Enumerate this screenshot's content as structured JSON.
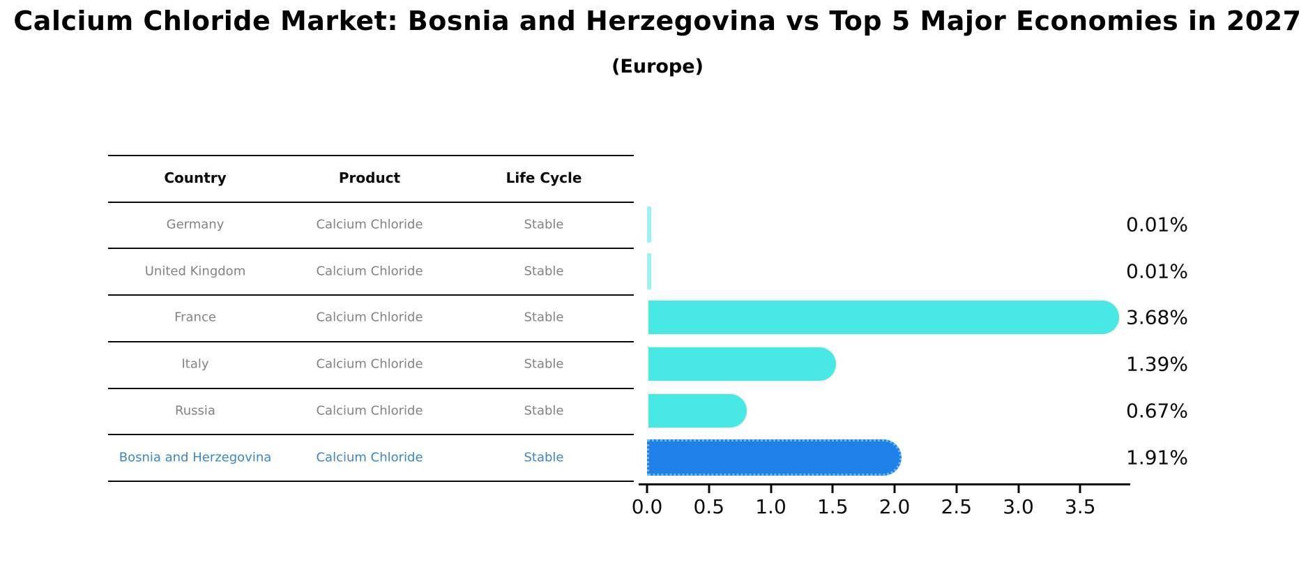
{
  "header": {
    "title": "Calcium Chloride Market: Bosnia and Herzegovina vs Top 5 Major Economies in 2027",
    "subtitle": "(Europe)"
  },
  "table": {
    "headers": [
      "Country",
      "Product",
      "Life Cycle"
    ],
    "rows": [
      {
        "country": "Germany",
        "product": "Calcium Chloride",
        "life_cycle": "Stable",
        "highlight": false
      },
      {
        "country": "United Kingdom",
        "product": "Calcium Chloride",
        "life_cycle": "Stable",
        "highlight": false
      },
      {
        "country": "France",
        "product": "Calcium Chloride",
        "life_cycle": "Stable",
        "highlight": false
      },
      {
        "country": "Italy",
        "product": "Calcium Chloride",
        "life_cycle": "Stable",
        "highlight": false
      },
      {
        "country": "Russia",
        "product": "Calcium Chloride",
        "life_cycle": "Stable",
        "highlight": true
      }
    ]
  },
  "chart_data": {
    "type": "bar",
    "orientation": "horizontal",
    "title": "Calcium Chloride Market: Bosnia and Herzegovina vs Top 5 Major Economies in 2027",
    "subtitle": "(Europe)",
    "categories": [
      "Germany",
      "United Kingdom",
      "France",
      "Italy",
      "Russia",
      "Bosnia and Herzegovina"
    ],
    "values": [
      0.01,
      0.01,
      3.68,
      1.39,
      0.67,
      1.91
    ],
    "value_labels": [
      "0.01%",
      "0.01%",
      "3.68%",
      "1.39%",
      "0.67%",
      "1.91%"
    ],
    "highlight_category": "Bosnia and Herzegovina",
    "x_ticks": [
      "0.0",
      "0.5",
      "1.0",
      "1.5",
      "2.0",
      "2.5",
      "3.0",
      "3.5"
    ],
    "xlim": [
      0.0,
      3.9
    ],
    "grid": false,
    "legend": "none",
    "colors": {
      "bar": "#48e8e4",
      "highlight_bar": "#1e80e8",
      "highlight_border": "#6db9f7",
      "highlight_text": "#3e86c6",
      "row_text": "#838383",
      "axis": "#0a0a0a"
    }
  }
}
